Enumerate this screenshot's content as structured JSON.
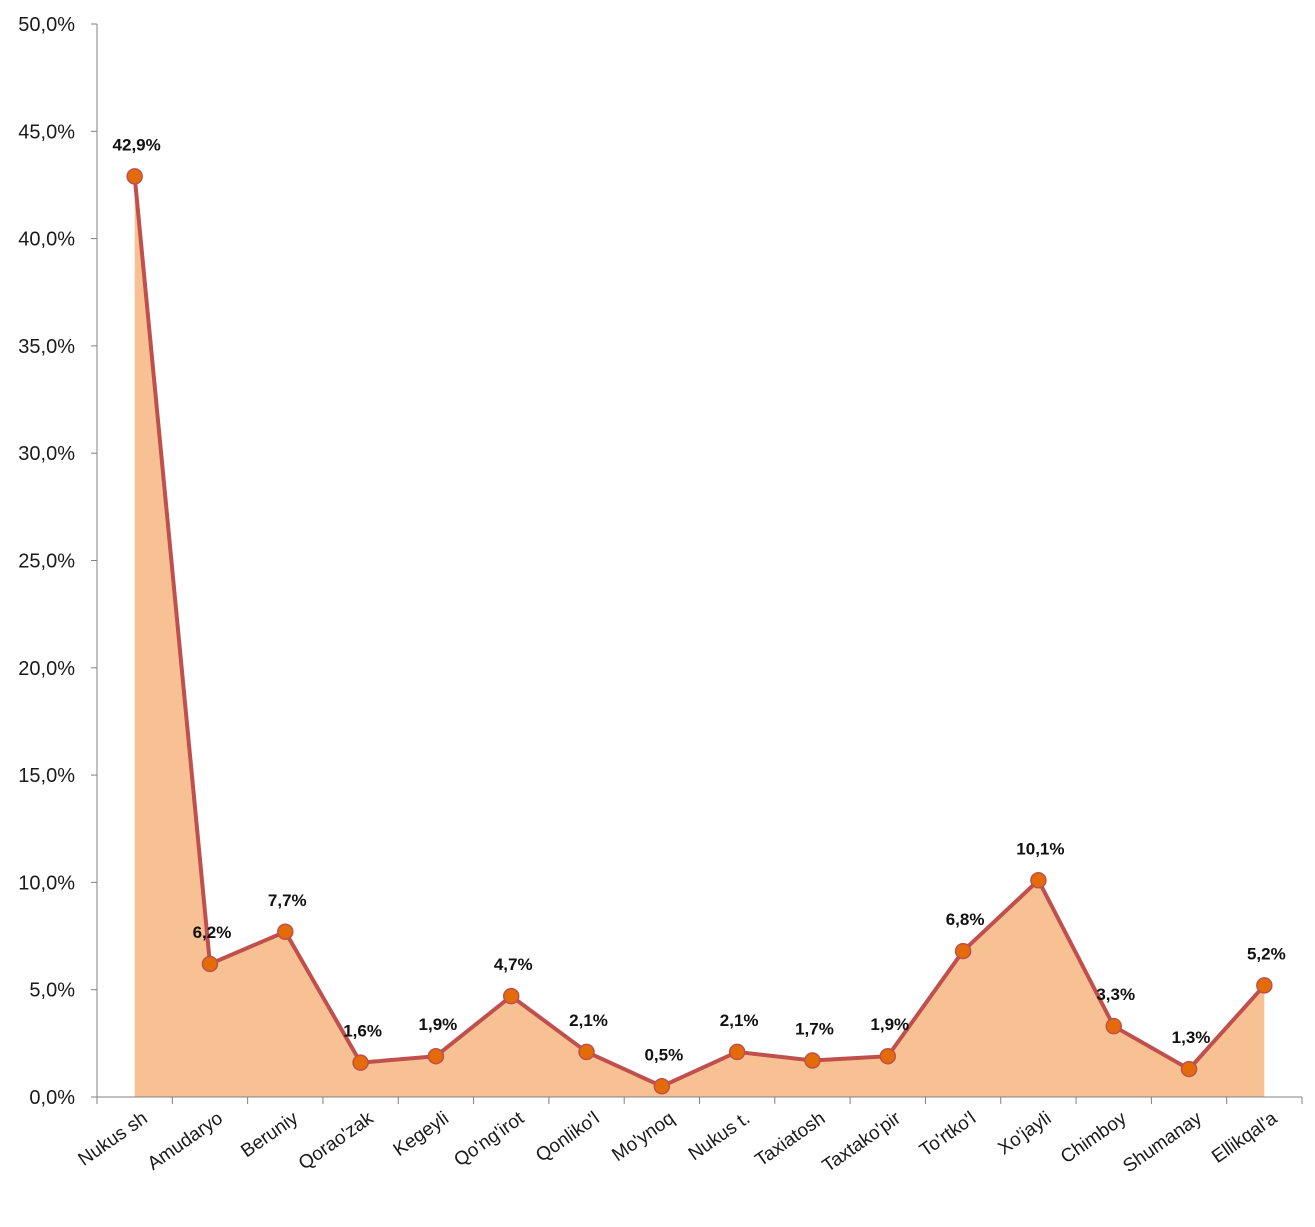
{
  "chart_data": {
    "type": "area",
    "categories": [
      "Nukus sh",
      "Amudaryo",
      "Beruniy",
      "Qorao'zak",
      "Kegeyli",
      "Qo'ng'irot",
      "Qonliko'l",
      "Mo'ynoq",
      "Nukus t.",
      "Taxiatosh",
      "Taxtako'pir",
      "To'rtko'l",
      "Xo'jayli",
      "Chimboy",
      "Shumanay",
      "Ellikqal'a"
    ],
    "values": [
      42.9,
      6.2,
      7.7,
      1.6,
      1.9,
      4.7,
      2.1,
      0.5,
      2.1,
      1.7,
      1.9,
      6.8,
      10.1,
      3.3,
      1.3,
      5.2
    ],
    "data_labels": [
      "42,9%",
      "6,2%",
      "7,7%",
      "1,6%",
      "1,9%",
      "4,7%",
      "2,1%",
      "0,5%",
      "2,1%",
      "1,7%",
      "1,9%",
      "6,8%",
      "10,1%",
      "3,3%",
      "1,3%",
      "5,2%"
    ],
    "y_ticks": [
      0,
      5,
      10,
      15,
      20,
      25,
      30,
      35,
      40,
      45,
      50
    ],
    "y_tick_labels": [
      "0,0%",
      "5,0%",
      "10,0%",
      "15,0%",
      "20,0%",
      "25,0%",
      "30,0%",
      "35,0%",
      "40,0%",
      "45,0%",
      "50,0%"
    ],
    "ylim": [
      0,
      50
    ],
    "title": "",
    "xlabel": "",
    "ylabel": "",
    "grid": false,
    "legend": "none",
    "colors": {
      "area_fill": "#f8c194",
      "line": "#c0504d",
      "marker_fill": "#e36c09",
      "marker_stroke": "#c0504d",
      "axis": "#808080"
    }
  }
}
